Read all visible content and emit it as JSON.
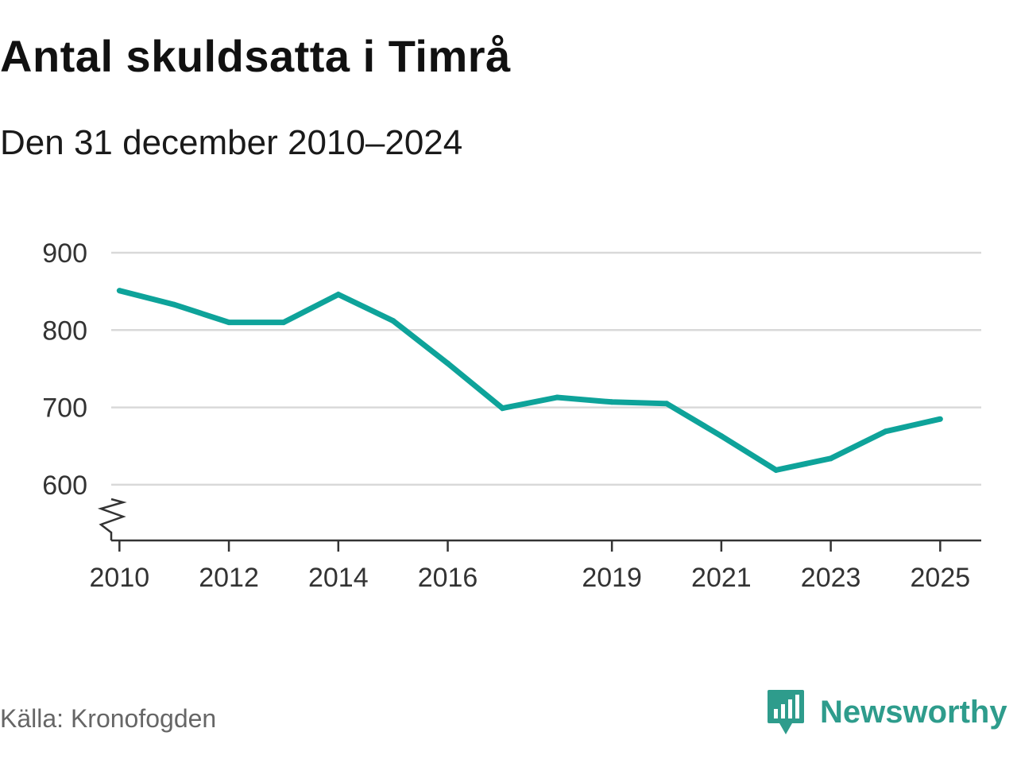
{
  "colors": {
    "series": "#0ea39a",
    "grid": "#d9d9d9",
    "axis": "#333333",
    "brand": "#2e9c8c"
  },
  "brand": {
    "name": "Newsworthy",
    "icon": "newsworthy-logo-icon"
  },
  "source": "Källa: Kronofogden",
  "chart_data": {
    "type": "line",
    "title": "Antal skuldsatta i Timrå",
    "subtitle": "Den 31 december 2010–2024",
    "xlabel": "",
    "ylabel": "",
    "xlim": [
      2009.85,
      2025.75
    ],
    "ylim": [
      528,
      900
    ],
    "y_ticks": [
      600,
      700,
      800,
      900
    ],
    "x_ticks": [
      2010,
      2012,
      2014,
      2016,
      2019,
      2021,
      2023,
      2025
    ],
    "grid": true,
    "axis_break": true,
    "series": [
      {
        "name": "Antal skuldsatta",
        "x": [
          2010,
          2011,
          2012,
          2013,
          2014,
          2015,
          2016,
          2017,
          2018,
          2019,
          2020,
          2021,
          2022,
          2023,
          2024,
          2025
        ],
        "values": [
          851,
          833,
          810,
          810,
          846,
          812,
          757,
          699,
          713,
          707,
          705,
          663,
          619,
          634,
          669,
          685
        ]
      }
    ]
  }
}
